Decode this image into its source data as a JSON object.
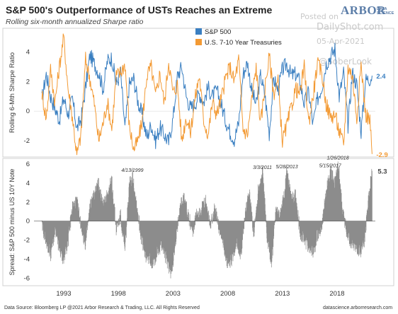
{
  "header": {
    "title": "S&P 500's Outperformance of USTs Reaches an Extreme",
    "subtitle": "Rolling six-month annualized Sharpe ratio"
  },
  "logo": {
    "name": "ARBOR",
    "sub_line1": "DATA",
    "sub_line2": "SCIENCE"
  },
  "watermark": {
    "posted_on": "Posted on",
    "site": "DailyShot.com",
    "date": "05-Apr-2021",
    "handle": "@SoberLook"
  },
  "footer": {
    "source": "Data Source: Bloomberg LP @2021 Arbor Research & Trading, LLC. All Rights Reserved",
    "website": "datascience.arborresearch.com"
  },
  "colors": {
    "spx": "#3a7fc1",
    "ust": "#f39a34",
    "spread": "#8c8c8c",
    "zero": "#555555"
  },
  "chart_data": [
    {
      "type": "line",
      "ylabel": "Rolling 6-Mth Sharpe Ratio",
      "ylim": [
        -3.1,
        5.6
      ],
      "yticks": [
        -2,
        0,
        2,
        4
      ],
      "xlim": [
        1990.8,
        2021.5
      ],
      "legend": "top-left",
      "series": [
        {
          "name": "S&P 500",
          "end_label": "2.4",
          "x": [
            1991.0,
            1991.4,
            1991.8,
            1992.2,
            1992.6,
            1993.0,
            1993.4,
            1993.8,
            1994.2,
            1994.6,
            1995.0,
            1995.4,
            1995.8,
            1996.2,
            1996.6,
            1997.0,
            1997.4,
            1997.8,
            1998.2,
            1998.6,
            1999.0,
            1999.4,
            1999.8,
            2000.2,
            2000.6,
            2001.0,
            2001.4,
            2001.8,
            2002.2,
            2002.6,
            2003.0,
            2003.4,
            2003.8,
            2004.2,
            2004.6,
            2005.0,
            2005.4,
            2005.8,
            2006.2,
            2006.6,
            2007.0,
            2007.4,
            2007.8,
            2008.2,
            2008.6,
            2009.0,
            2009.4,
            2009.8,
            2010.2,
            2010.6,
            2011.0,
            2011.4,
            2011.8,
            2012.2,
            2012.6,
            2013.0,
            2013.4,
            2013.8,
            2014.2,
            2014.6,
            2015.0,
            2015.4,
            2015.8,
            2016.2,
            2016.6,
            2017.0,
            2017.4,
            2017.8,
            2018.2,
            2018.6,
            2019.0,
            2019.4,
            2019.8,
            2020.2,
            2020.6,
            2021.0,
            2021.2
          ],
          "values": [
            0.8,
            2.5,
            1.0,
            0.2,
            -0.6,
            0.9,
            -0.2,
            0.8,
            -1.2,
            -0.5,
            1.6,
            3.8,
            3.2,
            2.6,
            1.5,
            3.4,
            3.6,
            1.8,
            2.6,
            -1.2,
            1.8,
            2.2,
            0.6,
            -0.3,
            -1.8,
            -0.9,
            -2.0,
            -1.1,
            -1.6,
            -2.1,
            -0.5,
            2.4,
            3.0,
            1.0,
            0.2,
            0.5,
            1.2,
            0.6,
            1.6,
            1.0,
            1.4,
            0.5,
            -0.6,
            -1.4,
            -1.9,
            -0.8,
            2.5,
            3.3,
            1.4,
            0.4,
            2.4,
            1.1,
            -1.5,
            2.2,
            1.4,
            2.8,
            3.2,
            2.4,
            2.5,
            2.0,
            0.5,
            1.3,
            -0.9,
            0.8,
            1.6,
            3.2,
            3.7,
            4.2,
            1.0,
            2.6,
            -1.0,
            2.6,
            1.8,
            -1.4,
            2.1,
            2.2,
            2.4
          ]
        },
        {
          "name": "U.S. 7-10 Year Treasuries",
          "end_label": "-2.9",
          "x": [
            1991.0,
            1991.4,
            1991.8,
            1992.2,
            1992.6,
            1993.0,
            1993.4,
            1993.8,
            1994.2,
            1994.6,
            1995.0,
            1995.4,
            1995.8,
            1996.2,
            1996.6,
            1997.0,
            1997.4,
            1997.8,
            1998.2,
            1998.6,
            1999.0,
            1999.4,
            1999.8,
            2000.2,
            2000.6,
            2001.0,
            2001.4,
            2001.8,
            2002.2,
            2002.6,
            2003.0,
            2003.4,
            2003.8,
            2004.2,
            2004.6,
            2005.0,
            2005.4,
            2005.8,
            2006.2,
            2006.6,
            2007.0,
            2007.4,
            2007.8,
            2008.2,
            2008.6,
            2009.0,
            2009.4,
            2009.8,
            2010.2,
            2010.6,
            2011.0,
            2011.4,
            2011.8,
            2012.2,
            2012.6,
            2013.0,
            2013.4,
            2013.8,
            2014.2,
            2014.6,
            2015.0,
            2015.4,
            2015.8,
            2016.2,
            2016.6,
            2017.0,
            2017.4,
            2017.8,
            2018.2,
            2018.6,
            2019.0,
            2019.4,
            2019.8,
            2020.2,
            2020.6,
            2021.0,
            2021.2
          ],
          "values": [
            1.2,
            -0.5,
            2.8,
            0.6,
            3.0,
            5.0,
            1.5,
            -0.4,
            -3.0,
            -1.5,
            3.5,
            2.2,
            0.5,
            -2.0,
            -0.8,
            0.6,
            -1.2,
            2.4,
            2.6,
            3.2,
            -1.0,
            -2.6,
            -2.0,
            -0.6,
            2.4,
            3.0,
            1.0,
            2.6,
            0.5,
            3.4,
            1.2,
            1.8,
            -2.0,
            -0.4,
            -1.4,
            0.8,
            2.4,
            -0.6,
            -1.6,
            0.6,
            -0.2,
            0.8,
            2.2,
            3.0,
            2.0,
            3.5,
            -1.2,
            -1.6,
            0.8,
            3.0,
            -0.9,
            1.6,
            3.7,
            1.2,
            2.0,
            -2.0,
            -1.0,
            0.2,
            1.5,
            1.2,
            3.0,
            -0.8,
            1.0,
            3.2,
            2.6,
            0.5,
            -0.4,
            -0.2,
            -1.4,
            -2.3,
            3.0,
            2.4,
            -0.5,
            3.2,
            -0.2,
            -0.6,
            -2.9
          ]
        }
      ]
    },
    {
      "type": "bar",
      "ylabel": "Spread: S&P 500 minus US 10Y Note",
      "ylim": [
        -6.8,
        6.6
      ],
      "yticks": [
        -6,
        -4,
        -2,
        0,
        2,
        4,
        6
      ],
      "xlim": [
        1990.8,
        2021.5
      ],
      "xticks": [
        "1993",
        "1998",
        "2003",
        "2008",
        "2013",
        "2018"
      ],
      "xtick_values": [
        1993,
        1998,
        2003,
        2008,
        2013,
        2018
      ],
      "end_label": "5.3",
      "annotations": [
        {
          "label": "4/13/1999",
          "x": 1999.28,
          "y": 4.8
        },
        {
          "label": "3/3/2011",
          "x": 2011.17,
          "y": 5.1
        },
        {
          "label": "5/28/2013",
          "x": 2013.41,
          "y": 5.2
        },
        {
          "label": "5/15/2017",
          "x": 2017.37,
          "y": 5.3
        },
        {
          "label": "1/26/2018",
          "x": 2018.07,
          "y": 6.1
        }
      ],
      "x": [
        1991.0,
        1991.4,
        1991.8,
        1992.2,
        1992.6,
        1993.0,
        1993.4,
        1993.8,
        1994.2,
        1994.6,
        1995.0,
        1995.4,
        1995.8,
        1996.2,
        1996.6,
        1997.0,
        1997.4,
        1997.8,
        1998.2,
        1998.6,
        1999.0,
        1999.3,
        1999.6,
        2000.0,
        2000.4,
        2000.8,
        2001.2,
        2001.6,
        2002.0,
        2002.4,
        2002.8,
        2003.2,
        2003.6,
        2004.0,
        2004.4,
        2004.8,
        2005.2,
        2005.6,
        2006.0,
        2006.4,
        2006.8,
        2007.2,
        2007.6,
        2008.0,
        2008.4,
        2008.8,
        2009.2,
        2009.6,
        2010.0,
        2010.4,
        2010.8,
        2011.2,
        2011.6,
        2012.0,
        2012.4,
        2012.8,
        2013.2,
        2013.4,
        2013.8,
        2014.2,
        2014.6,
        2015.0,
        2015.4,
        2015.8,
        2016.2,
        2016.6,
        2017.0,
        2017.4,
        2017.8,
        2018.1,
        2018.5,
        2018.9,
        2019.3,
        2019.7,
        2020.1,
        2020.5,
        2020.9,
        2021.2
      ],
      "values": [
        -0.5,
        -2.0,
        -3.5,
        -1.0,
        -3.0,
        -4.0,
        -2.0,
        1.5,
        2.0,
        -0.5,
        -2.5,
        1.5,
        2.8,
        4.0,
        1.5,
        3.0,
        4.2,
        -0.8,
        0.5,
        -3.2,
        3.8,
        4.8,
        2.4,
        -1.0,
        -3.6,
        -3.8,
        -4.5,
        -3.0,
        -2.5,
        -4.0,
        -5.5,
        -2.8,
        1.5,
        2.5,
        0.5,
        -1.0,
        0.8,
        1.2,
        2.0,
        -0.5,
        1.5,
        -0.8,
        -2.5,
        -4.5,
        -4.0,
        -2.0,
        -3.5,
        1.0,
        2.8,
        -1.5,
        3.5,
        5.1,
        -1.5,
        -4.6,
        1.0,
        0.5,
        3.0,
        5.2,
        2.2,
        2.6,
        -1.0,
        -2.0,
        -2.6,
        -3.4,
        -1.5,
        -0.5,
        3.0,
        5.3,
        3.8,
        6.1,
        1.2,
        -1.2,
        -2.2,
        -2.5,
        -3.2,
        -2.0,
        2.5,
        5.3
      ]
    }
  ]
}
